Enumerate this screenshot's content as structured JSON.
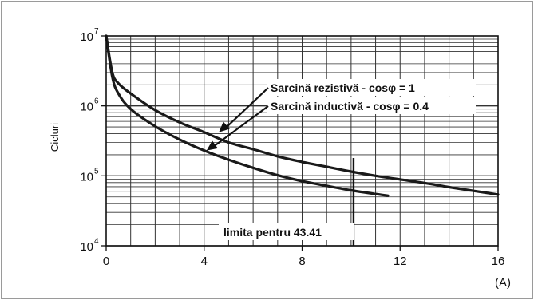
{
  "chart_data": {
    "type": "line",
    "title": "",
    "xlabel": "",
    "ylabel": "Cicluri",
    "x_unit_label": "(A)",
    "xlim": [
      0,
      16
    ],
    "ylim": [
      10000,
      10000000
    ],
    "y_scale": "log",
    "grid": true,
    "x_ticks": [
      0,
      4,
      8,
      12,
      16
    ],
    "x_tick_labels": [
      "0",
      "4",
      "8",
      "12",
      "16"
    ],
    "y_ticks": [
      {
        "value": 10000,
        "base": "10",
        "exp": "4"
      },
      {
        "value": 100000,
        "base": "10",
        "exp": "5"
      },
      {
        "value": 1000000,
        "base": "10",
        "exp": "6"
      },
      {
        "value": 10000000,
        "base": "10",
        "exp": "7"
      }
    ],
    "series": [
      {
        "name": "Sarcină rezistivă - cosφ = 1",
        "points": [
          [
            0,
            10000000
          ],
          [
            0.25,
            3000000
          ],
          [
            0.5,
            2100000
          ],
          [
            1,
            1500000
          ],
          [
            2,
            870000
          ],
          [
            3,
            580000
          ],
          [
            4,
            420000
          ],
          [
            5,
            300000
          ],
          [
            6,
            240000
          ],
          [
            7,
            190000
          ],
          [
            8,
            158000
          ],
          [
            9,
            135000
          ],
          [
            10,
            115000
          ],
          [
            11,
            100000
          ],
          [
            12,
            89000
          ],
          [
            13,
            79000
          ],
          [
            14,
            69000
          ],
          [
            15,
            61000
          ],
          [
            16,
            54000
          ]
        ]
      },
      {
        "name": "Sarcină inductivă - cosφ = 0.4",
        "points": [
          [
            0,
            10000000
          ],
          [
            0.25,
            2600000
          ],
          [
            0.5,
            1500000
          ],
          [
            1,
            900000
          ],
          [
            2,
            510000
          ],
          [
            3,
            330000
          ],
          [
            4,
            230000
          ],
          [
            5,
            170000
          ],
          [
            6,
            130000
          ],
          [
            7,
            102000
          ],
          [
            8,
            84000
          ],
          [
            9,
            72000
          ],
          [
            10,
            62000
          ],
          [
            11,
            55000
          ],
          [
            11.5,
            52000
          ]
        ]
      }
    ],
    "annotations": [
      {
        "text": "Sarcină rezistivă - cosφ = 1",
        "arrow_to": [
          4.6,
          420000
        ]
      },
      {
        "text": "Sarcină inductivă - cosφ = 0.4",
        "arrow_to": [
          4.1,
          230000
        ]
      }
    ],
    "limit_line": {
      "x": 10.1,
      "y_from": 10000,
      "y_to": 180000,
      "label": "limita pentru 43.41"
    }
  },
  "colors": {
    "curve": "#1a1a1a",
    "grid": "#333333",
    "frame": "#9a9a9a"
  }
}
